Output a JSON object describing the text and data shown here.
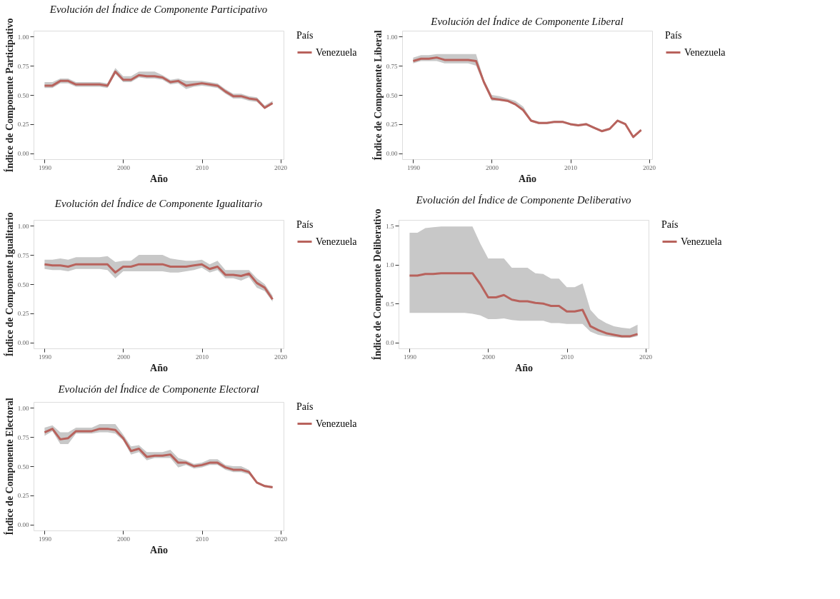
{
  "chart_data": [
    {
      "type": "line",
      "title": "Evolución del Índice de Componente Participativo",
      "xlabel": "Año",
      "ylabel": "Índice de Componente Participativo",
      "legend_title": "País",
      "legend": "right",
      "grid": false,
      "x": [
        1990,
        1991,
        1992,
        1993,
        1994,
        1995,
        1996,
        1997,
        1998,
        1999,
        2000,
        2001,
        2002,
        2003,
        2004,
        2005,
        2006,
        2007,
        2008,
        2009,
        2010,
        2011,
        2012,
        2013,
        2014,
        2015,
        2016,
        2017,
        2018,
        2019
      ],
      "xlim": [
        1988.6,
        2020.4
      ],
      "xticks": [
        1990,
        2000,
        2010,
        2020
      ],
      "ylim": [
        -0.05,
        1.05
      ],
      "yticks": [
        {
          "value": 0,
          "label": "0.00"
        },
        {
          "value": 0.25,
          "label": "0.25"
        },
        {
          "value": 0.5,
          "label": "0.50"
        },
        {
          "value": 0.75,
          "label": "0.75"
        },
        {
          "value": 1,
          "label": "1.00"
        }
      ],
      "series": [
        {
          "name": "Venezuela",
          "color": "#b8625c",
          "values": [
            0.58,
            0.58,
            0.62,
            0.62,
            0.59,
            0.59,
            0.59,
            0.59,
            0.58,
            0.7,
            0.63,
            0.63,
            0.67,
            0.66,
            0.66,
            0.65,
            0.61,
            0.62,
            0.58,
            0.59,
            0.6,
            0.59,
            0.58,
            0.53,
            0.49,
            0.49,
            0.47,
            0.46,
            0.39,
            0.43
          ],
          "lower": [
            0.56,
            0.56,
            0.6,
            0.6,
            0.57,
            0.57,
            0.57,
            0.57,
            0.56,
            0.68,
            0.61,
            0.61,
            0.65,
            0.64,
            0.64,
            0.63,
            0.59,
            0.6,
            0.55,
            0.57,
            0.58,
            0.57,
            0.56,
            0.51,
            0.47,
            0.47,
            0.45,
            0.44,
            0.38,
            0.42
          ],
          "upper": [
            0.61,
            0.61,
            0.64,
            0.64,
            0.61,
            0.61,
            0.61,
            0.61,
            0.6,
            0.73,
            0.66,
            0.66,
            0.7,
            0.7,
            0.7,
            0.67,
            0.63,
            0.64,
            0.62,
            0.62,
            0.62,
            0.61,
            0.6,
            0.55,
            0.51,
            0.51,
            0.49,
            0.48,
            0.41,
            0.45
          ]
        }
      ]
    },
    {
      "type": "line",
      "title": "Evolución del Índice de Componente Liberal",
      "xlabel": "Año",
      "ylabel": "Índice de Componente Liberal",
      "legend_title": "País",
      "legend": "right",
      "grid": false,
      "x": [
        1990,
        1991,
        1992,
        1993,
        1994,
        1995,
        1996,
        1997,
        1998,
        1999,
        2000,
        2001,
        2002,
        2003,
        2004,
        2005,
        2006,
        2007,
        2008,
        2009,
        2010,
        2011,
        2012,
        2013,
        2014,
        2015,
        2016,
        2017,
        2018,
        2019
      ],
      "xlim": [
        1988.6,
        2020.4
      ],
      "xticks": [
        1990,
        2000,
        2010,
        2020
      ],
      "ylim": [
        -0.05,
        1.05
      ],
      "yticks": [
        {
          "value": 0,
          "label": "0.00"
        },
        {
          "value": 0.25,
          "label": "0.25"
        },
        {
          "value": 0.5,
          "label": "0.50"
        },
        {
          "value": 0.75,
          "label": "0.75"
        },
        {
          "value": 1,
          "label": "1.00"
        }
      ],
      "series": [
        {
          "name": "Venezuela",
          "color": "#b8625c",
          "values": [
            0.79,
            0.81,
            0.81,
            0.82,
            0.8,
            0.8,
            0.8,
            0.8,
            0.79,
            0.61,
            0.47,
            0.46,
            0.45,
            0.42,
            0.37,
            0.28,
            0.26,
            0.26,
            0.27,
            0.27,
            0.25,
            0.24,
            0.25,
            0.22,
            0.19,
            0.21,
            0.28,
            0.25,
            0.14,
            0.2
          ],
          "lower": [
            0.77,
            0.79,
            0.79,
            0.79,
            0.77,
            0.77,
            0.77,
            0.77,
            0.75,
            0.59,
            0.45,
            0.45,
            0.44,
            0.41,
            0.36,
            0.27,
            0.25,
            0.25,
            0.26,
            0.26,
            0.24,
            0.23,
            0.24,
            0.21,
            0.18,
            0.2,
            0.27,
            0.24,
            0.13,
            0.19
          ],
          "upper": [
            0.82,
            0.84,
            0.84,
            0.85,
            0.85,
            0.85,
            0.85,
            0.85,
            0.85,
            0.63,
            0.5,
            0.49,
            0.47,
            0.45,
            0.4,
            0.29,
            0.27,
            0.27,
            0.28,
            0.28,
            0.26,
            0.25,
            0.26,
            0.23,
            0.2,
            0.22,
            0.29,
            0.26,
            0.15,
            0.21
          ]
        }
      ]
    },
    {
      "type": "line",
      "title": "Evolución del Índice de Componente Igualitario",
      "xlabel": "Año",
      "ylabel": "Índice de Componente Igualitario",
      "legend_title": "País",
      "legend": "right",
      "grid": false,
      "x": [
        1990,
        1991,
        1992,
        1993,
        1994,
        1995,
        1996,
        1997,
        1998,
        1999,
        2000,
        2001,
        2002,
        2003,
        2004,
        2005,
        2006,
        2007,
        2008,
        2009,
        2010,
        2011,
        2012,
        2013,
        2014,
        2015,
        2016,
        2017,
        2018,
        2019
      ],
      "xlim": [
        1988.6,
        2020.4
      ],
      "xticks": [
        1990,
        2000,
        2010,
        2020
      ],
      "ylim": [
        -0.05,
        1.05
      ],
      "yticks": [
        {
          "value": 0,
          "label": "0.00"
        },
        {
          "value": 0.25,
          "label": "0.25"
        },
        {
          "value": 0.5,
          "label": "0.50"
        },
        {
          "value": 0.75,
          "label": "0.75"
        },
        {
          "value": 1,
          "label": "1.00"
        }
      ],
      "series": [
        {
          "name": "Venezuela",
          "color": "#b8625c",
          "values": [
            0.67,
            0.66,
            0.66,
            0.65,
            0.67,
            0.67,
            0.67,
            0.67,
            0.67,
            0.6,
            0.65,
            0.65,
            0.67,
            0.67,
            0.67,
            0.67,
            0.65,
            0.65,
            0.65,
            0.66,
            0.67,
            0.63,
            0.65,
            0.58,
            0.58,
            0.57,
            0.59,
            0.51,
            0.47,
            0.37
          ],
          "lower": [
            0.63,
            0.62,
            0.62,
            0.61,
            0.63,
            0.63,
            0.63,
            0.63,
            0.62,
            0.55,
            0.61,
            0.61,
            0.61,
            0.61,
            0.61,
            0.61,
            0.6,
            0.6,
            0.61,
            0.62,
            0.64,
            0.6,
            0.62,
            0.55,
            0.55,
            0.53,
            0.56,
            0.47,
            0.44,
            0.35
          ],
          "upper": [
            0.71,
            0.71,
            0.72,
            0.71,
            0.73,
            0.73,
            0.73,
            0.73,
            0.74,
            0.69,
            0.7,
            0.7,
            0.75,
            0.75,
            0.75,
            0.75,
            0.72,
            0.71,
            0.7,
            0.7,
            0.71,
            0.67,
            0.7,
            0.62,
            0.62,
            0.62,
            0.62,
            0.55,
            0.5,
            0.4
          ]
        }
      ]
    },
    {
      "type": "line",
      "title": "Evolución del Índice de Componente Deliberativo",
      "xlabel": "Año",
      "ylabel": "Índice de Componente Deliberativo",
      "legend_title": "País",
      "legend": "right",
      "grid": false,
      "x": [
        1990,
        1991,
        1992,
        1993,
        1994,
        1995,
        1996,
        1997,
        1998,
        1999,
        2000,
        2001,
        2002,
        2003,
        2004,
        2005,
        2006,
        2007,
        2008,
        2009,
        2010,
        2011,
        2012,
        2013,
        2014,
        2015,
        2016,
        2017,
        2018,
        2019
      ],
      "xlim": [
        1988.6,
        2020.4
      ],
      "xticks": [
        1990,
        2000,
        2010,
        2020
      ],
      "ylim": [
        -0.075,
        1.575
      ],
      "yticks": [
        {
          "value": 0,
          "label": "0.0"
        },
        {
          "value": 0.5,
          "label": "0.5"
        },
        {
          "value": 1,
          "label": "1.0"
        },
        {
          "value": 1.5,
          "label": "1.5"
        }
      ],
      "series": [
        {
          "name": "Venezuela",
          "color": "#b8625c",
          "values": [
            0.86,
            0.86,
            0.88,
            0.88,
            0.89,
            0.89,
            0.89,
            0.89,
            0.89,
            0.75,
            0.58,
            0.58,
            0.61,
            0.55,
            0.53,
            0.53,
            0.51,
            0.5,
            0.47,
            0.47,
            0.4,
            0.4,
            0.42,
            0.21,
            0.16,
            0.12,
            0.1,
            0.08,
            0.08,
            0.11
          ],
          "lower": [
            0.38,
            0.38,
            0.38,
            0.38,
            0.38,
            0.38,
            0.38,
            0.38,
            0.37,
            0.35,
            0.3,
            0.3,
            0.31,
            0.29,
            0.28,
            0.28,
            0.28,
            0.28,
            0.25,
            0.25,
            0.24,
            0.24,
            0.24,
            0.14,
            0.1,
            0.08,
            0.07,
            0.06,
            0.06,
            0.08
          ],
          "upper": [
            1.41,
            1.41,
            1.47,
            1.48,
            1.49,
            1.49,
            1.49,
            1.49,
            1.49,
            1.27,
            1.08,
            1.08,
            1.08,
            0.96,
            0.96,
            0.96,
            0.89,
            0.88,
            0.82,
            0.82,
            0.71,
            0.71,
            0.76,
            0.42,
            0.31,
            0.25,
            0.21,
            0.19,
            0.18,
            0.23
          ]
        }
      ]
    },
    {
      "type": "line",
      "title": "Evolución del Índice de Componente Electoral",
      "xlabel": "Año",
      "ylabel": "Índice de Componente Electoral",
      "legend_title": "País",
      "legend": "right",
      "grid": false,
      "x": [
        1990,
        1991,
        1992,
        1993,
        1994,
        1995,
        1996,
        1997,
        1998,
        1999,
        2000,
        2001,
        2002,
        2003,
        2004,
        2005,
        2006,
        2007,
        2008,
        2009,
        2010,
        2011,
        2012,
        2013,
        2014,
        2015,
        2016,
        2017,
        2018,
        2019
      ],
      "xlim": [
        1988.6,
        2020.4
      ],
      "xticks": [
        1990,
        2000,
        2010,
        2020
      ],
      "ylim": [
        -0.05,
        1.05
      ],
      "yticks": [
        {
          "value": 0,
          "label": "0.00"
        },
        {
          "value": 0.25,
          "label": "0.25"
        },
        {
          "value": 0.5,
          "label": "0.50"
        },
        {
          "value": 0.75,
          "label": "0.75"
        },
        {
          "value": 1,
          "label": "1.00"
        }
      ],
      "series": [
        {
          "name": "Venezuela",
          "color": "#b8625c",
          "values": [
            0.79,
            0.82,
            0.73,
            0.74,
            0.8,
            0.8,
            0.8,
            0.82,
            0.82,
            0.81,
            0.74,
            0.63,
            0.65,
            0.58,
            0.59,
            0.59,
            0.6,
            0.53,
            0.53,
            0.5,
            0.51,
            0.53,
            0.53,
            0.49,
            0.47,
            0.47,
            0.45,
            0.36,
            0.33,
            0.32
          ],
          "lower": [
            0.76,
            0.8,
            0.69,
            0.69,
            0.78,
            0.78,
            0.78,
            0.79,
            0.79,
            0.78,
            0.72,
            0.6,
            0.62,
            0.55,
            0.57,
            0.57,
            0.57,
            0.49,
            0.51,
            0.48,
            0.49,
            0.51,
            0.51,
            0.47,
            0.45,
            0.45,
            0.43,
            0.35,
            0.32,
            0.31
          ],
          "upper": [
            0.83,
            0.85,
            0.79,
            0.79,
            0.83,
            0.83,
            0.83,
            0.86,
            0.86,
            0.86,
            0.77,
            0.67,
            0.68,
            0.62,
            0.62,
            0.62,
            0.64,
            0.57,
            0.55,
            0.52,
            0.53,
            0.56,
            0.56,
            0.51,
            0.5,
            0.5,
            0.47,
            0.37,
            0.34,
            0.33
          ]
        }
      ]
    }
  ]
}
